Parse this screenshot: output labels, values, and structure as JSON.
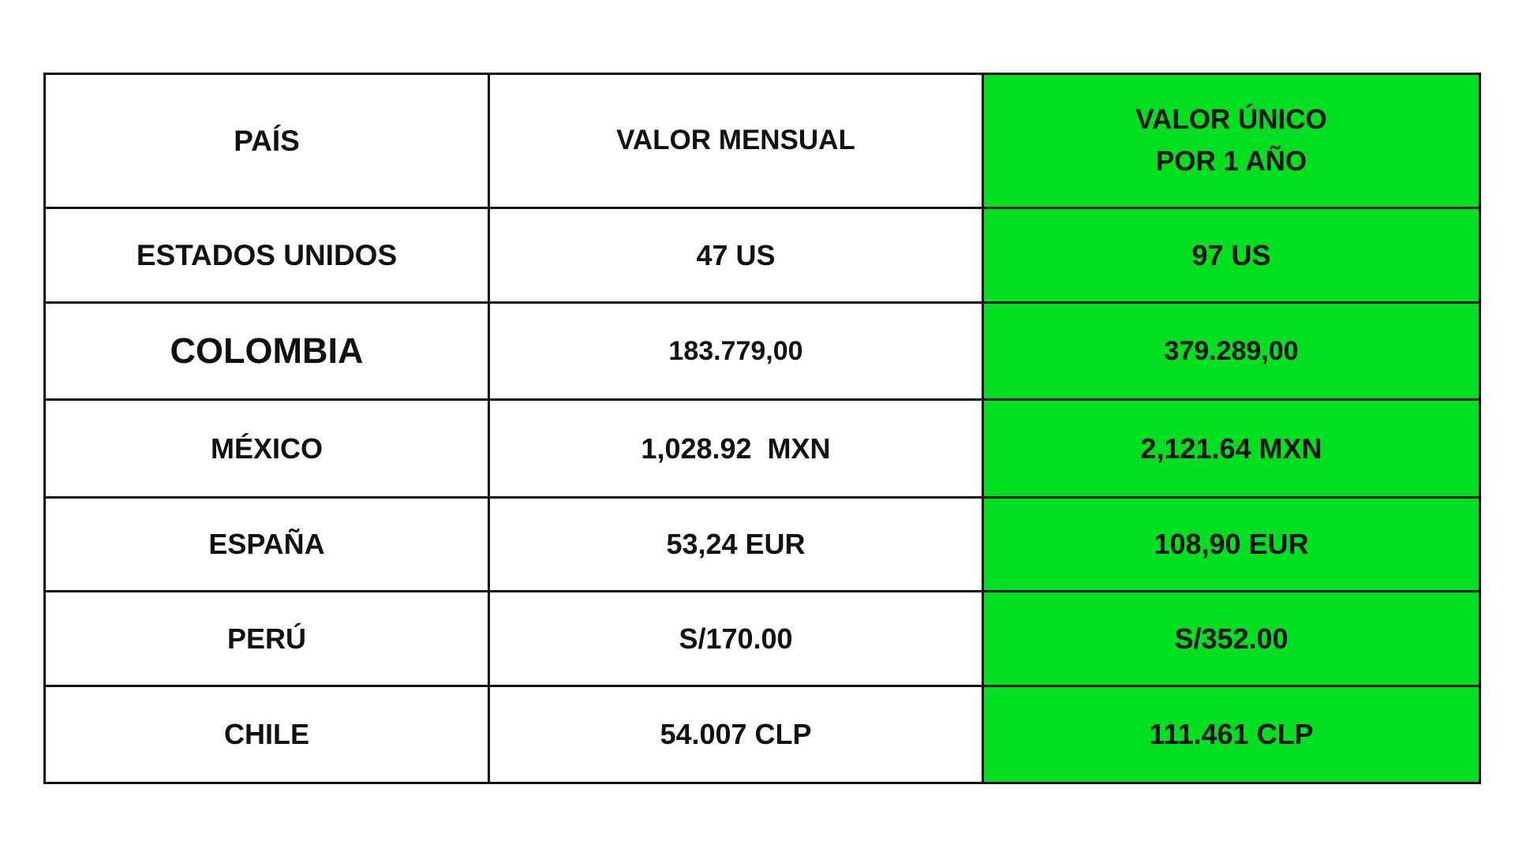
{
  "table": {
    "header": [
      "PAÍS",
      "VALOR MENSUAL",
      [
        "VALOR ÚNICO",
        "POR 1 AÑO"
      ]
    ],
    "rows": [
      [
        "ESTADOS UNIDOS",
        "47 US",
        "97 US"
      ],
      [
        "COLOMBIA",
        "183.779,00",
        "379.289,00"
      ],
      [
        "MÉXICO",
        "1,028.92  MXN",
        "2,121.64 MXN"
      ],
      [
        "ESPAÑA",
        "53,24 EUR",
        "108,90 EUR"
      ],
      [
        "PERÚ",
        "S/170.00",
        "S/352.00"
      ],
      [
        "CHILE",
        "54.007 CLP",
        "111.461 CLP"
      ]
    ]
  }
}
